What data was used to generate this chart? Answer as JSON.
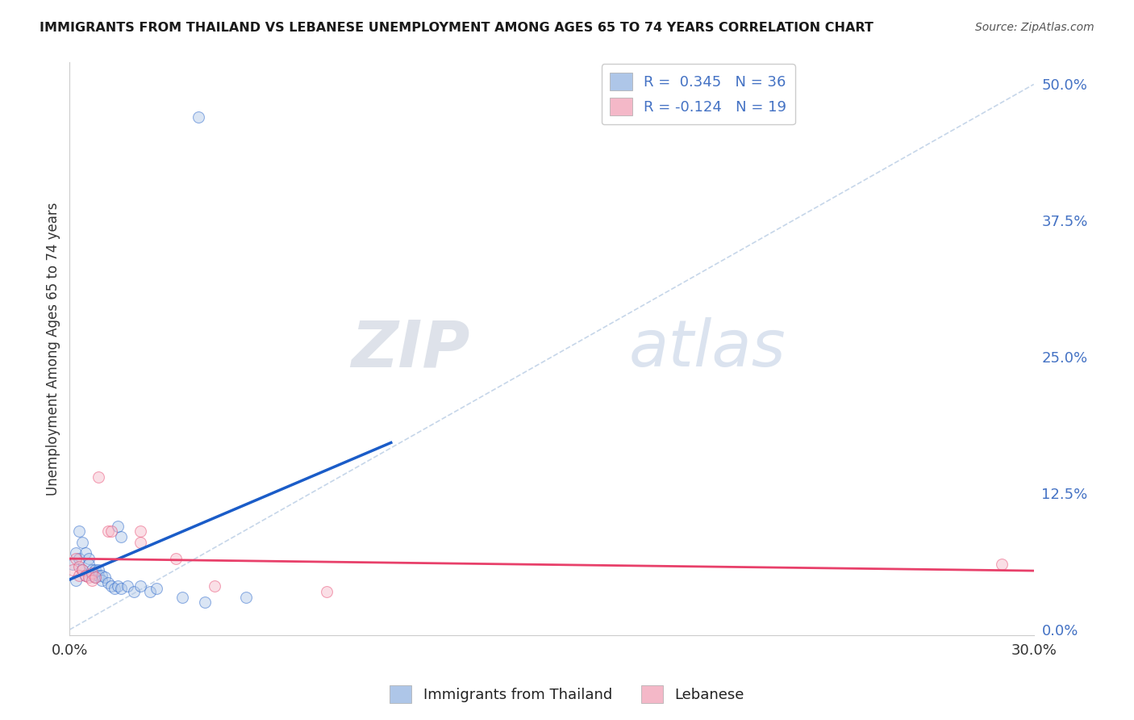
{
  "title": "IMMIGRANTS FROM THAILAND VS LEBANESE UNEMPLOYMENT AMONG AGES 65 TO 74 YEARS CORRELATION CHART",
  "source": "Source: ZipAtlas.com",
  "ylabel": "Unemployment Among Ages 65 to 74 years",
  "xlim": [
    0,
    0.3
  ],
  "ylim": [
    -0.005,
    0.52
  ],
  "watermark_zip": "ZIP",
  "watermark_atlas": "atlas",
  "legend_entries": [
    {
      "label": "R =  0.345   N = 36",
      "color": "#aec6e8"
    },
    {
      "label": "R = -0.124   N = 19",
      "color": "#f4b8c8"
    }
  ],
  "bottom_legend": [
    {
      "label": "Immigrants from Thailand",
      "color": "#aec6e8"
    },
    {
      "label": "Lebanese",
      "color": "#f4b8c8"
    }
  ],
  "thailand_points": [
    [
      0.001,
      0.06
    ],
    [
      0.002,
      0.07
    ],
    [
      0.002,
      0.045
    ],
    [
      0.003,
      0.09
    ],
    [
      0.003,
      0.065
    ],
    [
      0.004,
      0.08
    ],
    [
      0.004,
      0.055
    ],
    [
      0.005,
      0.07
    ],
    [
      0.005,
      0.05
    ],
    [
      0.006,
      0.065
    ],
    [
      0.006,
      0.06
    ],
    [
      0.007,
      0.055
    ],
    [
      0.007,
      0.05
    ],
    [
      0.008,
      0.055
    ],
    [
      0.008,
      0.048
    ],
    [
      0.009,
      0.055
    ],
    [
      0.009,
      0.05
    ],
    [
      0.01,
      0.05
    ],
    [
      0.01,
      0.045
    ],
    [
      0.011,
      0.048
    ],
    [
      0.012,
      0.043
    ],
    [
      0.013,
      0.04
    ],
    [
      0.014,
      0.038
    ],
    [
      0.015,
      0.04
    ],
    [
      0.015,
      0.095
    ],
    [
      0.016,
      0.085
    ],
    [
      0.016,
      0.038
    ],
    [
      0.018,
      0.04
    ],
    [
      0.02,
      0.035
    ],
    [
      0.022,
      0.04
    ],
    [
      0.025,
      0.035
    ],
    [
      0.027,
      0.038
    ],
    [
      0.035,
      0.03
    ],
    [
      0.04,
      0.47
    ],
    [
      0.042,
      0.025
    ],
    [
      0.055,
      0.03
    ]
  ],
  "lebanese_points": [
    [
      0.001,
      0.055
    ],
    [
      0.002,
      0.065
    ],
    [
      0.003,
      0.058
    ],
    [
      0.003,
      0.05
    ],
    [
      0.004,
      0.055
    ],
    [
      0.005,
      0.05
    ],
    [
      0.006,
      0.048
    ],
    [
      0.007,
      0.052
    ],
    [
      0.007,
      0.045
    ],
    [
      0.008,
      0.048
    ],
    [
      0.009,
      0.14
    ],
    [
      0.012,
      0.09
    ],
    [
      0.013,
      0.09
    ],
    [
      0.022,
      0.09
    ],
    [
      0.022,
      0.08
    ],
    [
      0.033,
      0.065
    ],
    [
      0.045,
      0.04
    ],
    [
      0.08,
      0.035
    ],
    [
      0.29,
      0.06
    ]
  ],
  "thailand_line_color": "#1a5cc8",
  "lebanese_line_color": "#e8406a",
  "diag_line_color": "#b8cce4",
  "grid_color": "#d8d8d8",
  "title_color": "#1a1a1a",
  "source_color": "#555555",
  "right_tick_color": "#4472c4",
  "marker_size": 100,
  "marker_alpha": 0.45
}
